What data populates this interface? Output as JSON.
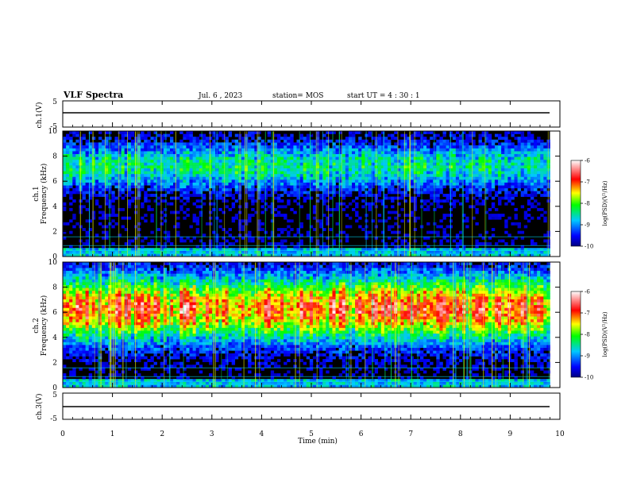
{
  "header": {
    "title": "VLF Spectra",
    "date": "Jul. 6 , 2023",
    "station": "station= MOS",
    "start": "start UT = 4 : 30 : 1"
  },
  "chart_data": {
    "type": "heatmap",
    "x": {
      "label": "Time (min)",
      "range": [
        0,
        10
      ],
      "ticks": [
        "0",
        "1",
        "2",
        "3",
        "4",
        "5",
        "6",
        "7",
        "8",
        "9",
        "10"
      ]
    },
    "waveform_panels": [
      {
        "name": "ch1-waveform",
        "ylabel": "ch.1(V)",
        "ylim": [
          -5,
          5
        ],
        "tick_labels": [
          "5",
          "-5"
        ],
        "trace_level": 0
      },
      {
        "name": "ch3-waveform",
        "ylabel": "ch.3(V)",
        "ylim": [
          -5,
          5
        ],
        "tick_labels": [
          "5",
          "-5"
        ],
        "trace_level": 0
      }
    ],
    "spectrogram_panels": [
      {
        "name": "ch1-spectrogram",
        "ylabel_channel": "ch.1",
        "ylabel": "Frequency (kHz)",
        "ylim": [
          0,
          10
        ],
        "tick_labels": [
          "0",
          "2",
          "4",
          "6",
          "8",
          "10"
        ],
        "colorbar_label": "log(PSD)(V²/Hz)",
        "colorbar_ticks": [
          "-6",
          "-7",
          "-8",
          "-9",
          "-10"
        ],
        "band_center_khz": 7.2,
        "band_halfwidth_khz": 1.8,
        "band_peak_log_psd": -8.4,
        "background_log_psd": -10
      },
      {
        "name": "ch2-spectrogram",
        "ylabel_channel": "ch.2",
        "ylabel": "Frequency (kHz)",
        "ylim": [
          0,
          10
        ],
        "tick_labels": [
          "0",
          "2",
          "4",
          "6",
          "8",
          "10"
        ],
        "colorbar_label": "log(PSD)(V²/Hz)",
        "colorbar_ticks": [
          "-6",
          "-7",
          "-8",
          "-9",
          "-10"
        ],
        "band_center_khz": 6.3,
        "band_halfwidth_khz": 2.6,
        "band_peak_log_psd": -6.9,
        "background_log_psd": -10
      }
    ],
    "colorbar_range": [
      -10,
      -6
    ],
    "colormap": [
      "#000080",
      "#0000ff",
      "#00ffff",
      "#00ff00",
      "#ffff00",
      "#ff0000",
      "#ffffff"
    ]
  }
}
